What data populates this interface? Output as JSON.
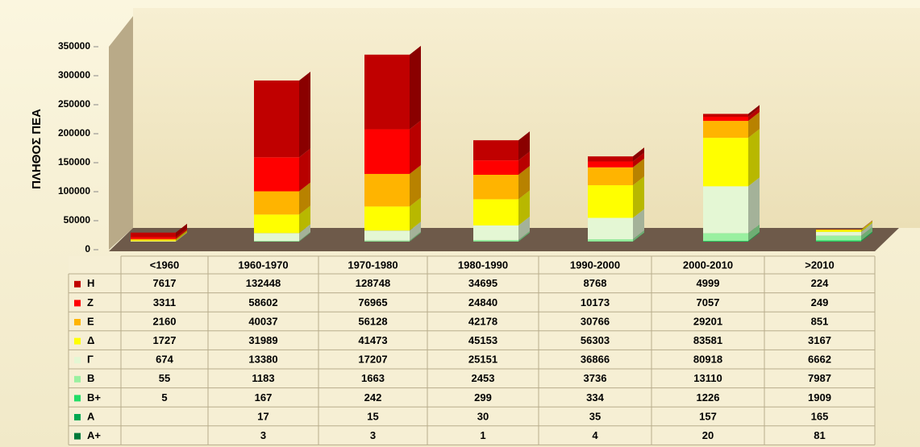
{
  "chart_data": {
    "type": "bar3d_stacked",
    "y_label": "ΠΛΗΘΟΣ ΠΕΑ",
    "categories": [
      "<1960",
      "1960-1970",
      "1970-1980",
      "1980-1990",
      "1990-2000",
      "2000-2010",
      ">2010"
    ],
    "ylim": [
      0,
      350000
    ],
    "yticks": [
      0,
      50000,
      100000,
      150000,
      200000,
      250000,
      300000,
      350000
    ],
    "series": [
      {
        "name": "Η",
        "color": "#c00000",
        "values": [
          7617,
          132448,
          128748,
          34695,
          8768,
          4999,
          224
        ]
      },
      {
        "name": "Ζ",
        "color": "#ff0000",
        "values": [
          3311,
          58602,
          76965,
          24840,
          10173,
          7057,
          249
        ]
      },
      {
        "name": "Ε",
        "color": "#ffb400",
        "values": [
          2160,
          40037,
          56128,
          42178,
          30766,
          29201,
          851
        ]
      },
      {
        "name": "Δ",
        "color": "#ffff00",
        "values": [
          1727,
          31989,
          41473,
          45153,
          56303,
          83581,
          3167
        ]
      },
      {
        "name": "Γ",
        "color": "#e4f7d4",
        "values": [
          674,
          13380,
          17207,
          25151,
          36866,
          80918,
          6662
        ]
      },
      {
        "name": "Β",
        "color": "#99f0a0",
        "values": [
          55,
          1183,
          1663,
          2453,
          3736,
          13110,
          7987
        ]
      },
      {
        "name": "Β+",
        "color": "#22dd66",
        "values": [
          5,
          167,
          242,
          299,
          334,
          1226,
          1909
        ]
      },
      {
        "name": "Α",
        "color": "#00a850",
        "values": [
          null,
          17,
          15,
          30,
          35,
          157,
          165
        ]
      },
      {
        "name": "Α+",
        "color": "#007a3a",
        "values": [
          null,
          3,
          3,
          1,
          4,
          20,
          81
        ]
      }
    ]
  }
}
